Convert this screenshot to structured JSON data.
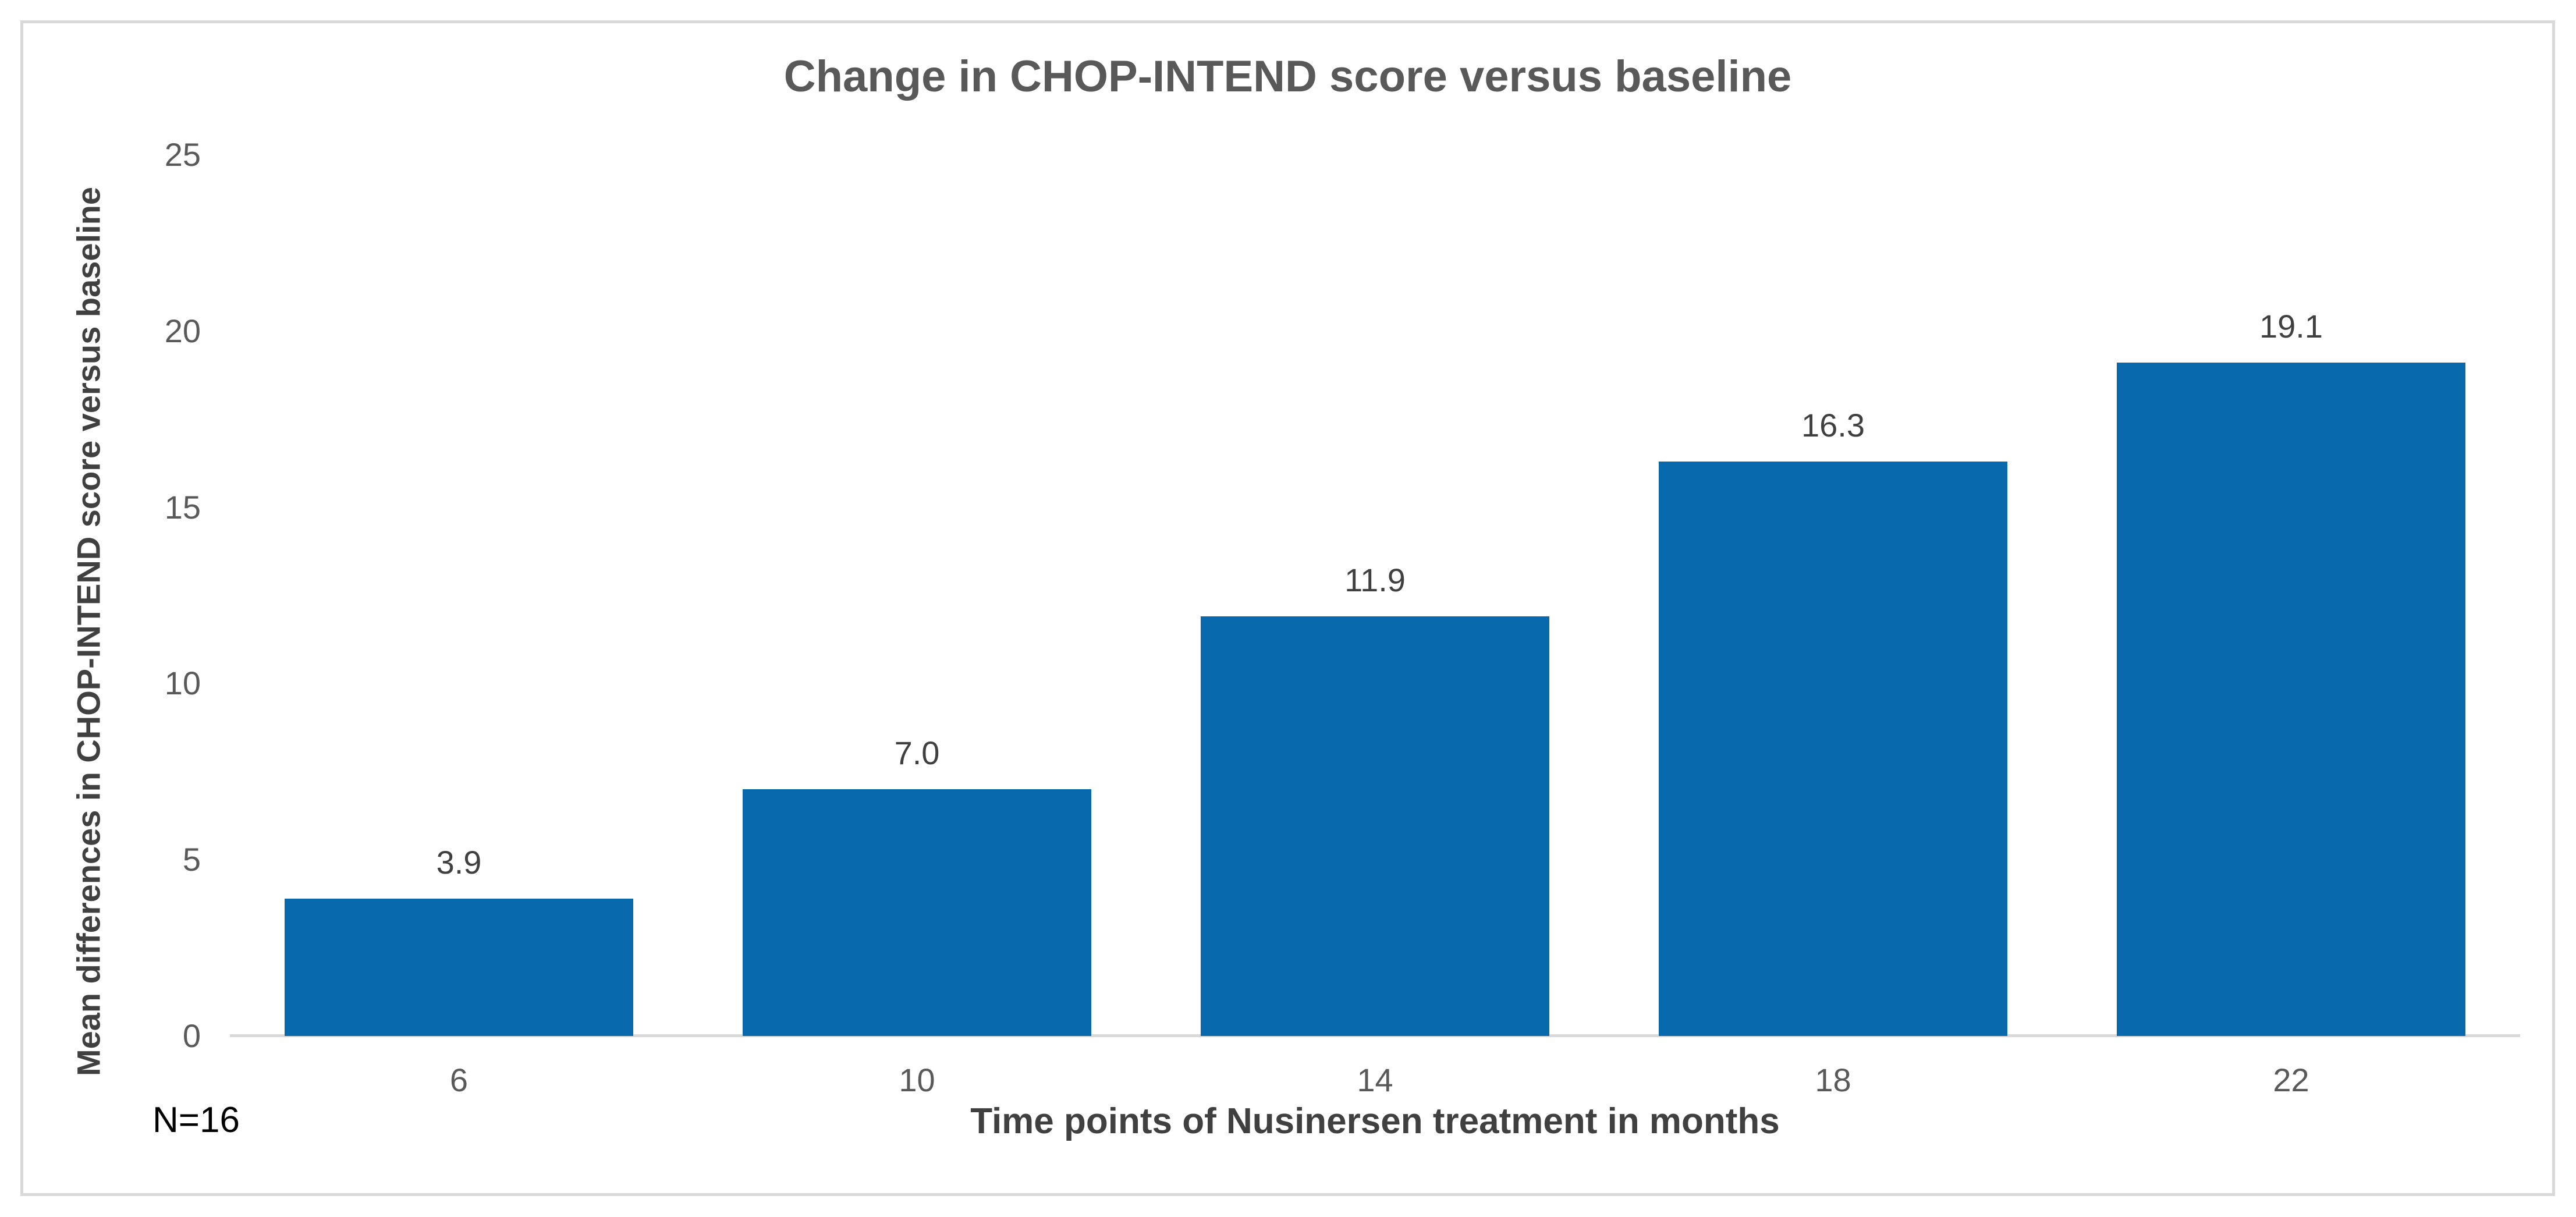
{
  "chart_data": {
    "type": "bar",
    "title": "Change in CHOP-INTEND score versus baseline",
    "categories": [
      "6",
      "10",
      "14",
      "18",
      "22"
    ],
    "values": [
      3.9,
      7.0,
      11.9,
      16.3,
      19.1
    ],
    "value_labels": [
      "3.9",
      "7.0",
      "11.9",
      "16.3",
      "19.1"
    ],
    "xlabel": "Time points of Nusinersen treatment in months",
    "ylabel": "Mean differences in CHOP-INTEND score versus baseline",
    "ylim": [
      0,
      25
    ],
    "yticks": [
      0,
      5,
      10,
      15,
      20,
      25
    ],
    "grid": false,
    "legend": false,
    "annotation": "N=16"
  },
  "colors": {
    "bar": "#0869AD",
    "axis_line": "#D9D9D9",
    "frame_border": "#D9D9D9",
    "title_text": "#595959",
    "tick_text": "#595959",
    "label_text": "#404040",
    "annotation_text": "#000000"
  }
}
